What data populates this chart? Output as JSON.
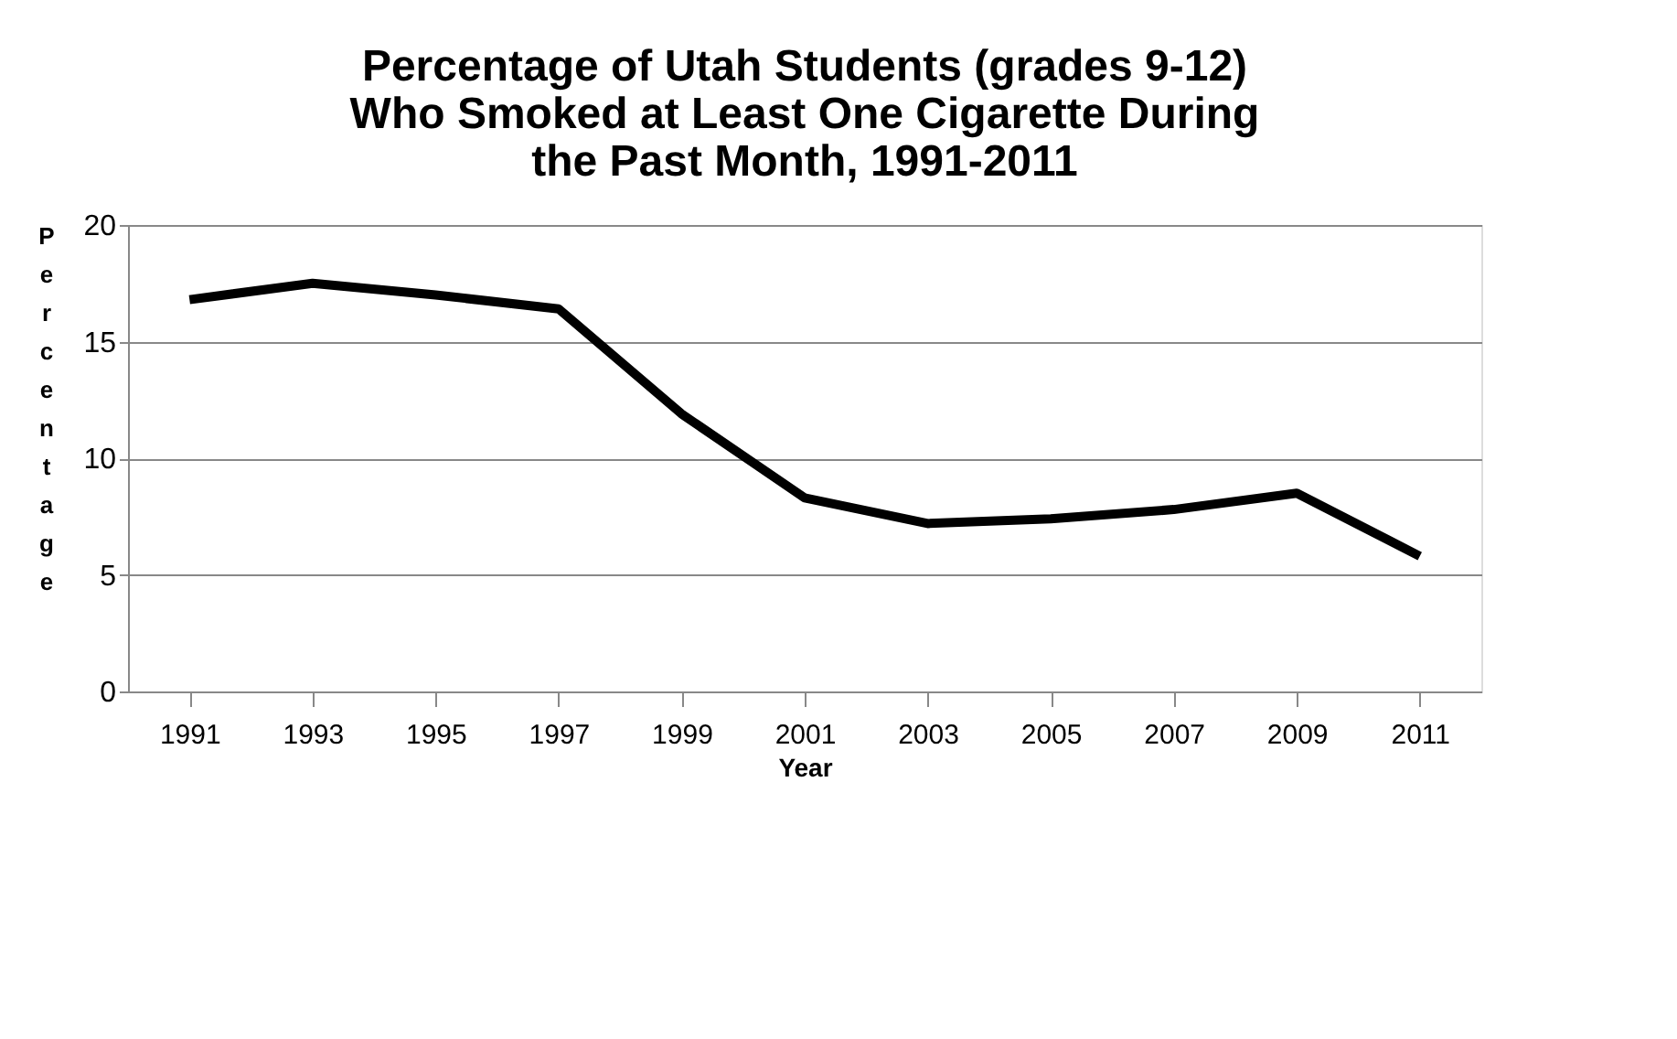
{
  "chart_data": {
    "type": "line",
    "title": "Percentage of Utah Students (grades 9-12)\nWho Smoked at Least One Cigarette During\nthe Past Month, 1991-2011",
    "xlabel": "Year",
    "ylabel": "Percentage",
    "categories": [
      "1991",
      "1993",
      "1995",
      "1997",
      "1999",
      "2001",
      "2003",
      "2005",
      "2007",
      "2009",
      "2011"
    ],
    "series": [
      {
        "color": "#000000",
        "values": [
          16.8,
          17.5,
          17.0,
          16.4,
          11.9,
          8.3,
          7.2,
          7.4,
          7.8,
          8.5,
          5.8
        ]
      }
    ],
    "ylim": [
      0,
      20
    ],
    "yticks": [
      0,
      5,
      10,
      15,
      20
    ],
    "grid": "y",
    "legend": false,
    "marker": "none",
    "line_style": "solid"
  }
}
